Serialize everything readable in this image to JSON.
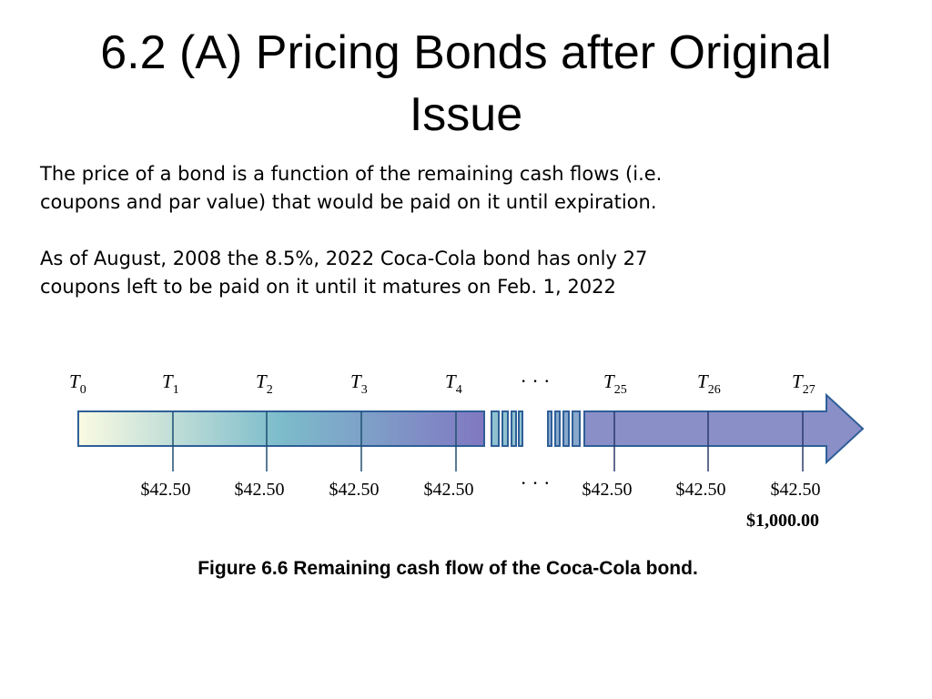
{
  "slide": {
    "title_line1": "6.2 (A)  Pricing Bonds after Original",
    "title_line2": "Issue",
    "paragraph1_line1": "The price of a bond is a function of the remaining cash flows (i.e.",
    "paragraph1_line2": "coupons and par value) that would be paid on it until expiration.",
    "paragraph2_line1": "As of August, 2008 the 8.5%, 2022 Coca-Cola bond has only 27",
    "paragraph2_line2": "coupons left to be paid on it until it matures on Feb. 1, 2022"
  },
  "timeline": {
    "periods": [
      {
        "label": "T",
        "sub": "0",
        "cash_flow": ""
      },
      {
        "label": "T",
        "sub": "1",
        "cash_flow": "$42.50"
      },
      {
        "label": "T",
        "sub": "2",
        "cash_flow": "$42.50"
      },
      {
        "label": "T",
        "sub": "3",
        "cash_flow": "$42.50"
      },
      {
        "label": "T",
        "sub": "4",
        "cash_flow": "$42.50"
      },
      {
        "label": "T",
        "sub": "25",
        "cash_flow": "$42.50"
      },
      {
        "label": "T",
        "sub": "26",
        "cash_flow": "$42.50"
      },
      {
        "label": "T",
        "sub": "27",
        "cash_flow": "$42.50"
      }
    ],
    "ellipsis_top": "· · ·",
    "ellipsis_bottom": "· · ·",
    "par_value": "$1,000.00",
    "colors": {
      "start": "#fbfbe2",
      "mid": "#7cbccb",
      "end": "#8178c2",
      "outline": "#2f5f98"
    }
  },
  "caption": "Figure 6.6  Remaining cash flow of the Coca-Cola bond."
}
